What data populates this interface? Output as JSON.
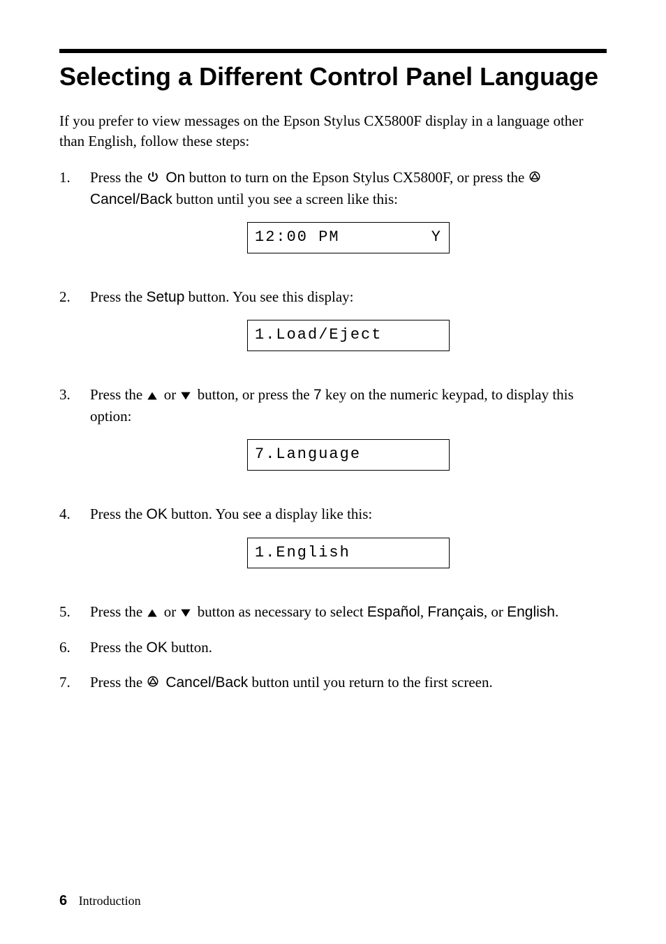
{
  "title": "Selecting a Different Control Panel Language",
  "intro": "If you prefer to view messages on the Epson Stylus CX5800F display in a language other than English, follow these steps:",
  "steps": [
    {
      "parts": [
        {
          "text": "Press the ",
          "style": "serif"
        },
        {
          "icon": "power"
        },
        {
          "text": " On",
          "style": "sans"
        },
        {
          "text": " button to turn on the Epson Stylus CX5800F, or press the ",
          "style": "serif"
        },
        {
          "icon": "cancel"
        },
        {
          "text": " Cancel/Back",
          "style": "sans"
        },
        {
          "text": " button until you see a screen like this:",
          "style": "serif"
        }
      ],
      "lcd": {
        "left": "12:00 PM",
        "right": "Y"
      }
    },
    {
      "parts": [
        {
          "text": "Press the ",
          "style": "serif"
        },
        {
          "text": "Setup",
          "style": "sans"
        },
        {
          "text": " button. You see this display:",
          "style": "serif"
        }
      ],
      "lcd": {
        "left": "1.Load/Eject",
        "right": ""
      }
    },
    {
      "parts": [
        {
          "text": "Press the ",
          "style": "serif"
        },
        {
          "icon": "up"
        },
        {
          "text": " or ",
          "style": "serif"
        },
        {
          "icon": "down"
        },
        {
          "text": " button, or press the ",
          "style": "serif"
        },
        {
          "text": "7",
          "style": "sans"
        },
        {
          "text": " key on the numeric keypad, to display this option:",
          "style": "serif"
        }
      ],
      "lcd": {
        "left": "7.Language",
        "right": ""
      }
    },
    {
      "parts": [
        {
          "text": "Press the ",
          "style": "serif"
        },
        {
          "text": "OK",
          "style": "sans"
        },
        {
          "text": " button. You see a display like this:",
          "style": "serif"
        }
      ],
      "lcd": {
        "left": "1.English",
        "right": ""
      }
    },
    {
      "parts": [
        {
          "text": "Press the ",
          "style": "serif"
        },
        {
          "icon": "up"
        },
        {
          "text": " or ",
          "style": "serif"
        },
        {
          "icon": "down"
        },
        {
          "text": " button as necessary to select ",
          "style": "serif"
        },
        {
          "text": "Español",
          "style": "sans"
        },
        {
          "text": ", ",
          "style": "serif"
        },
        {
          "text": "Français",
          "style": "sans"
        },
        {
          "text": ", or ",
          "style": "serif"
        },
        {
          "text": "English",
          "style": "sans"
        },
        {
          "text": ".",
          "style": "serif"
        }
      ]
    },
    {
      "parts": [
        {
          "text": "Press the ",
          "style": "serif"
        },
        {
          "text": "OK",
          "style": "sans"
        },
        {
          "text": " button.",
          "style": "serif"
        }
      ]
    },
    {
      "parts": [
        {
          "text": "Press the ",
          "style": "serif"
        },
        {
          "icon": "cancel"
        },
        {
          "text": " Cancel/Back",
          "style": "sans"
        },
        {
          "text": " button until you return to the first screen.",
          "style": "serif"
        }
      ]
    }
  ],
  "footer": {
    "page": "6",
    "section": "Introduction"
  },
  "icons": {
    "power": "<svg width='18' height='18' viewBox='0 0 24 24' fill='none' stroke='#000' stroke-width='2.5'><path d='M12 3 L12 12'/><path d='M7 6 A 8 8 0 1 0 17 6'/></svg>",
    "cancel": "<svg width='18' height='18' viewBox='0 0 24 24' fill='none' stroke='#000' stroke-width='2'><circle cx='12' cy='12' r='9'/><polygon points='12,6 6,16 18,16' fill='none'/></svg>",
    "up": "<svg width='16' height='14' viewBox='0 0 24 20'><polygon points='12,2 2,18 22,18' fill='#000'/></svg>",
    "down": "<svg width='16' height='14' viewBox='0 0 24 20'><polygon points='2,2 22,2 12,18' fill='#000'/></svg>"
  }
}
